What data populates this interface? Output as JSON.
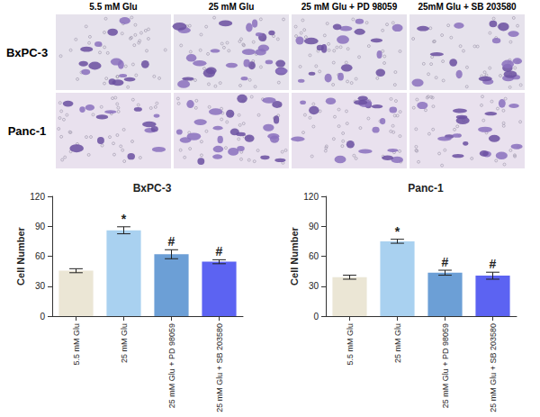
{
  "image_panel": {
    "column_labels": [
      "5.5 mM Glu",
      "25 mM Glu",
      "25 mM Glu + PD 98059",
      "25mM Glu + SB 203580"
    ],
    "row_labels": [
      "BxPC-3",
      "Panc-1"
    ]
  },
  "chart_data": [
    {
      "type": "bar",
      "title": "BxPC-3",
      "categories": [
        "5.5 mM Glu",
        "25 mM Glu",
        "25 mM Glu + PD 98059",
        "25 mM Glu + SB 203580"
      ],
      "values": [
        45.5,
        86,
        62,
        54.5
      ],
      "errors": [
        2,
        3.5,
        4.5,
        2
      ],
      "annotations": [
        null,
        "*",
        "#",
        "#"
      ],
      "colors": [
        "#ebe6d5",
        "#a9d1f0",
        "#6c9fd6",
        "#5c63f2"
      ],
      "ylabel": "Cell Number",
      "ylim": [
        0,
        120
      ],
      "yticks": [
        0,
        30,
        60,
        90,
        120
      ],
      "grid": false
    },
    {
      "type": "bar",
      "title": "Panc-1",
      "categories": [
        "5.5 mM Glu",
        "25 mM Glu",
        "25 mM Glu + PD 98059",
        "25 mM Glu + SB 203580"
      ],
      "values": [
        39,
        75,
        43.5,
        40.5
      ],
      "errors": [
        2,
        2,
        2.5,
        3.5
      ],
      "annotations": [
        null,
        "*",
        "#",
        "#"
      ],
      "colors": [
        "#ebe6d5",
        "#a9d1f0",
        "#6c9fd6",
        "#5c63f2"
      ],
      "ylabel": "Cell Number",
      "ylim": [
        0,
        120
      ],
      "yticks": [
        0,
        30,
        60,
        90,
        120
      ],
      "grid": false
    }
  ]
}
